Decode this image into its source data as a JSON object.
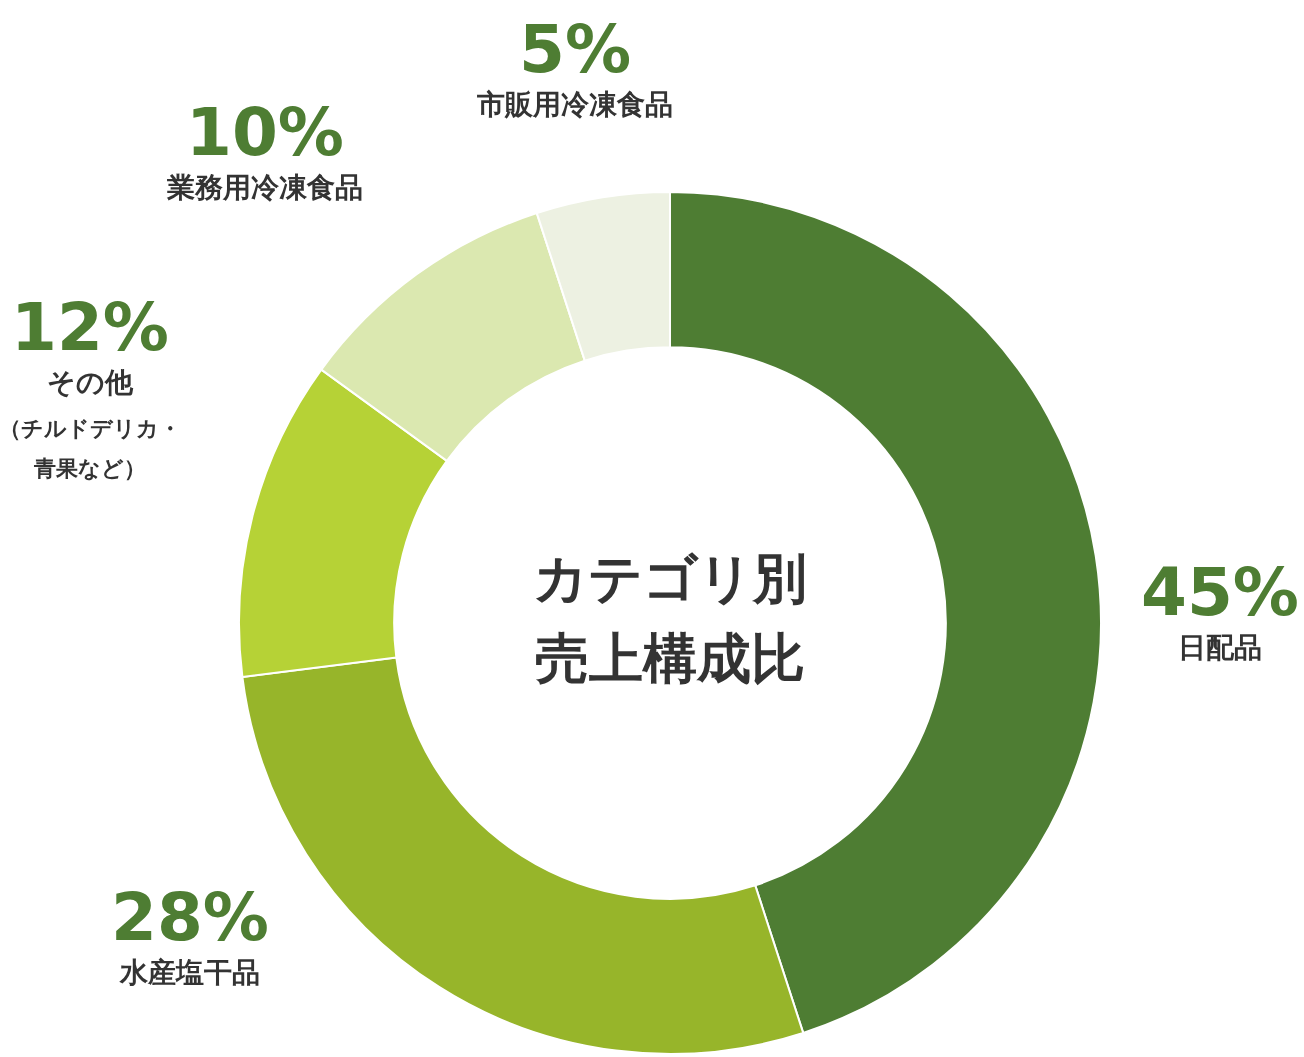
{
  "chart_data": {
    "type": "donut",
    "title": "カテゴリ別売上構成比",
    "categories": [
      "日配品",
      "水産塩干品",
      "その他（チルドデリカ・青果など）",
      "業務用冷凍食品",
      "市販用冷凍食品"
    ],
    "values": [
      45,
      28,
      12,
      10,
      5
    ],
    "value_labels": [
      "45%",
      "28%",
      "12%",
      "10%",
      "5%"
    ],
    "colors": [
      "#4e7d33",
      "#97b52a",
      "#b6d236",
      "#dbe8b0",
      "#edf1e2"
    ],
    "legend": false
  }
}
